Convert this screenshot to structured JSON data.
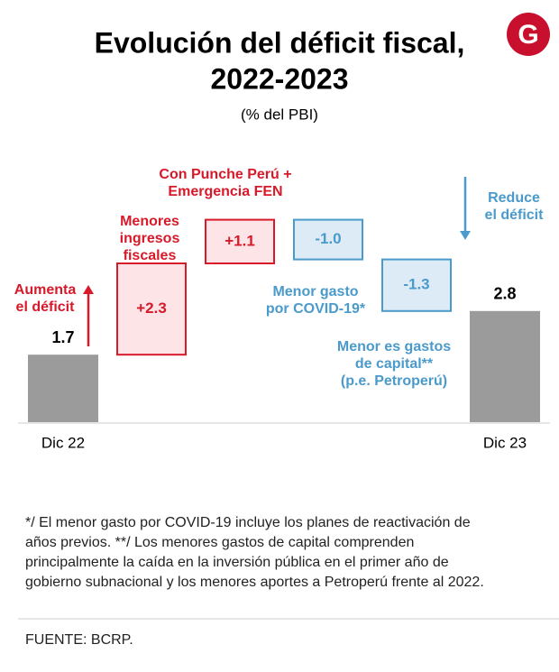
{
  "logo": "G",
  "chart_data": {
    "type": "waterfall",
    "title": [
      "Evolución del déficit fiscal,",
      "2022-2023"
    ],
    "subtitle": "(% del PBI)",
    "categories": [
      "Dic 22",
      null,
      null,
      null,
      null,
      "Dic 23"
    ],
    "values": [
      1.7,
      2.3,
      1.1,
      -1.0,
      -1.3,
      2.8
    ],
    "value_labels": [
      "1.7",
      "+2.3",
      "+1.1",
      "-1.0",
      "-1.3",
      "2.8"
    ],
    "is_total": [
      true,
      false,
      false,
      false,
      false,
      true
    ],
    "colors": {
      "total": "#9b9b9b",
      "increase": "#d7192a",
      "increase_fill": "#fde4e7",
      "decrease": "#4a9acb",
      "decrease_fill": "#dcebf5"
    },
    "annotations": [
      [
        "Aumenta",
        "el déficit"
      ],
      [
        "Menores",
        "ingresos",
        "fiscales"
      ],
      [
        "Con Punche Perú +",
        "Emergencia FEN"
      ],
      [
        "Menor gasto",
        "por COVID-19*"
      ],
      [
        "Menor es gastos",
        "de capital**",
        "(p.e. Petroperú)"
      ],
      [
        "Reduce",
        "el déficit"
      ]
    ],
    "footnote": [
      "*/ El menor gasto por COVID-19 incluye los planes de reactivación de",
      "años previos.  **/ Los menores gastos de capital comprenden",
      "principalmente la caída en la inversión pública en el primer año de",
      "gobierno subnacional y los menores aportes a Petroperú frente al 2022."
    ],
    "source": "FUENTE: BCRP."
  }
}
